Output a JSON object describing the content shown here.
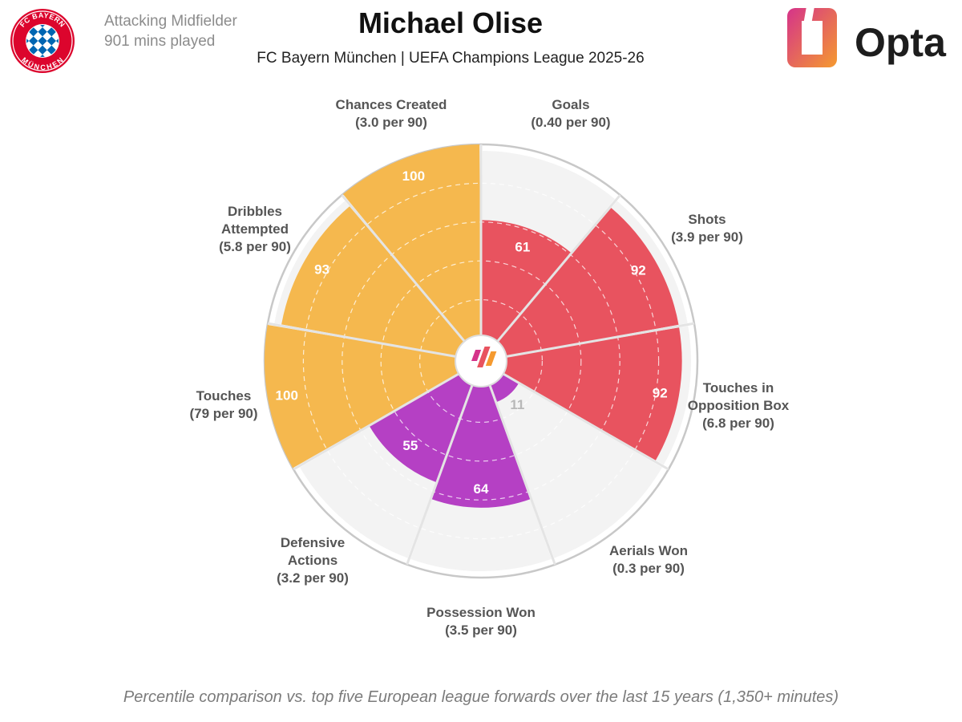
{
  "header": {
    "position": "Attacking Midfielder",
    "minutes": "901 mins played",
    "title": "Michael Olise",
    "subtitle": "FC Bayern München | UEFA Champions League 2025-26",
    "club_badge_text_top": "FC BAYERN",
    "club_badge_text_bottom": "MÜNCHEN",
    "brand": "Opta"
  },
  "footnote": "Percentile comparison vs. top five European league forwards over the last 15 years (1,350+ minutes)",
  "colors": {
    "attacking": "#e8535f",
    "possession": "#f5b84e",
    "defending": "#b540c4",
    "background_wedge": "#f3f3f3",
    "grid_dash": "#ffffff",
    "outer_ring": "#c8c8c8",
    "label_text": "#555555"
  },
  "chart_data": {
    "type": "polar-bar",
    "scale_max": 100,
    "rings": [
      20,
      40,
      60,
      80
    ],
    "start_angle_deg": 0,
    "direction": "clockwise",
    "series": [
      {
        "label": "Goals",
        "per90": "(0.40 per 90)",
        "value": 61,
        "group": "attacking"
      },
      {
        "label": "Shots",
        "per90": "(3.9 per 90)",
        "value": 92,
        "group": "attacking"
      },
      {
        "label": "Touches in Opposition Box",
        "per90": "(6.8 per 90)",
        "value": 92,
        "group": "attacking"
      },
      {
        "label": "Aerials Won",
        "per90": "(0.3 per 90)",
        "value": 11,
        "group": "defending"
      },
      {
        "label": "Possession Won",
        "per90": "(3.5 per 90)",
        "value": 64,
        "group": "defending"
      },
      {
        "label": "Defensive Actions",
        "per90": "(3.2 per 90)",
        "value": 55,
        "group": "defending"
      },
      {
        "label": "Touches",
        "per90": "(79 per 90)",
        "value": 100,
        "group": "possession"
      },
      {
        "label": "Dribbles Attempted",
        "per90": "(5.8 per 90)",
        "value": 93,
        "group": "possession"
      },
      {
        "label": "Chances Created",
        "per90": "(3.0 per 90)",
        "value": 100,
        "group": "possession"
      }
    ]
  }
}
